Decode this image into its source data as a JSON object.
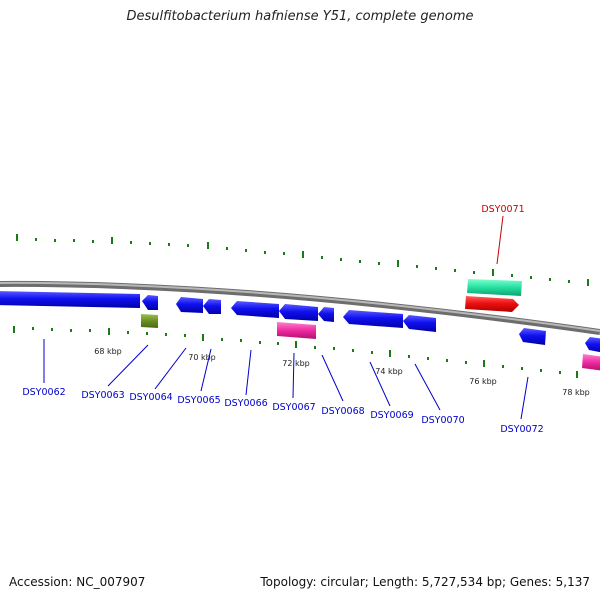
{
  "title": "Desulfitobacterium hafniense Y51, complete genome",
  "footer": {
    "accession": "Accession: NC_007907",
    "topology": "Topology: circular; Length: 5,727,534 bp; Genes: 5,137"
  },
  "scale_labels": [
    "68 kbp",
    "70 kbp",
    "72 kbp",
    "74 kbp",
    "76 kbp",
    "78 kbp"
  ],
  "genes": [
    {
      "id": "DSY0062",
      "color": "#0000cc"
    },
    {
      "id": "DSY0063",
      "color": "#0000cc"
    },
    {
      "id": "DSY0064",
      "color": "#0000cc"
    },
    {
      "id": "DSY0065",
      "color": "#0000cc"
    },
    {
      "id": "DSY0066",
      "color": "#0000cc"
    },
    {
      "id": "DSY0067",
      "color": "#0000cc"
    },
    {
      "id": "DSY0068",
      "color": "#0000cc"
    },
    {
      "id": "DSY0069",
      "color": "#0000cc"
    },
    {
      "id": "DSY0070",
      "color": "#0000cc"
    },
    {
      "id": "DSY0071",
      "color": "#cc0000"
    },
    {
      "id": "DSY0072",
      "color": "#0000cc"
    }
  ],
  "colors": {
    "backbone": "#8a8a8a",
    "cds_blue": "#1a1aee",
    "cds_red": "#ee1111",
    "cds_green": "#22e0a0",
    "cds_pink": "#ee2aa0",
    "cds_olive": "#6b8e23",
    "tick": "#1a7a1a"
  }
}
